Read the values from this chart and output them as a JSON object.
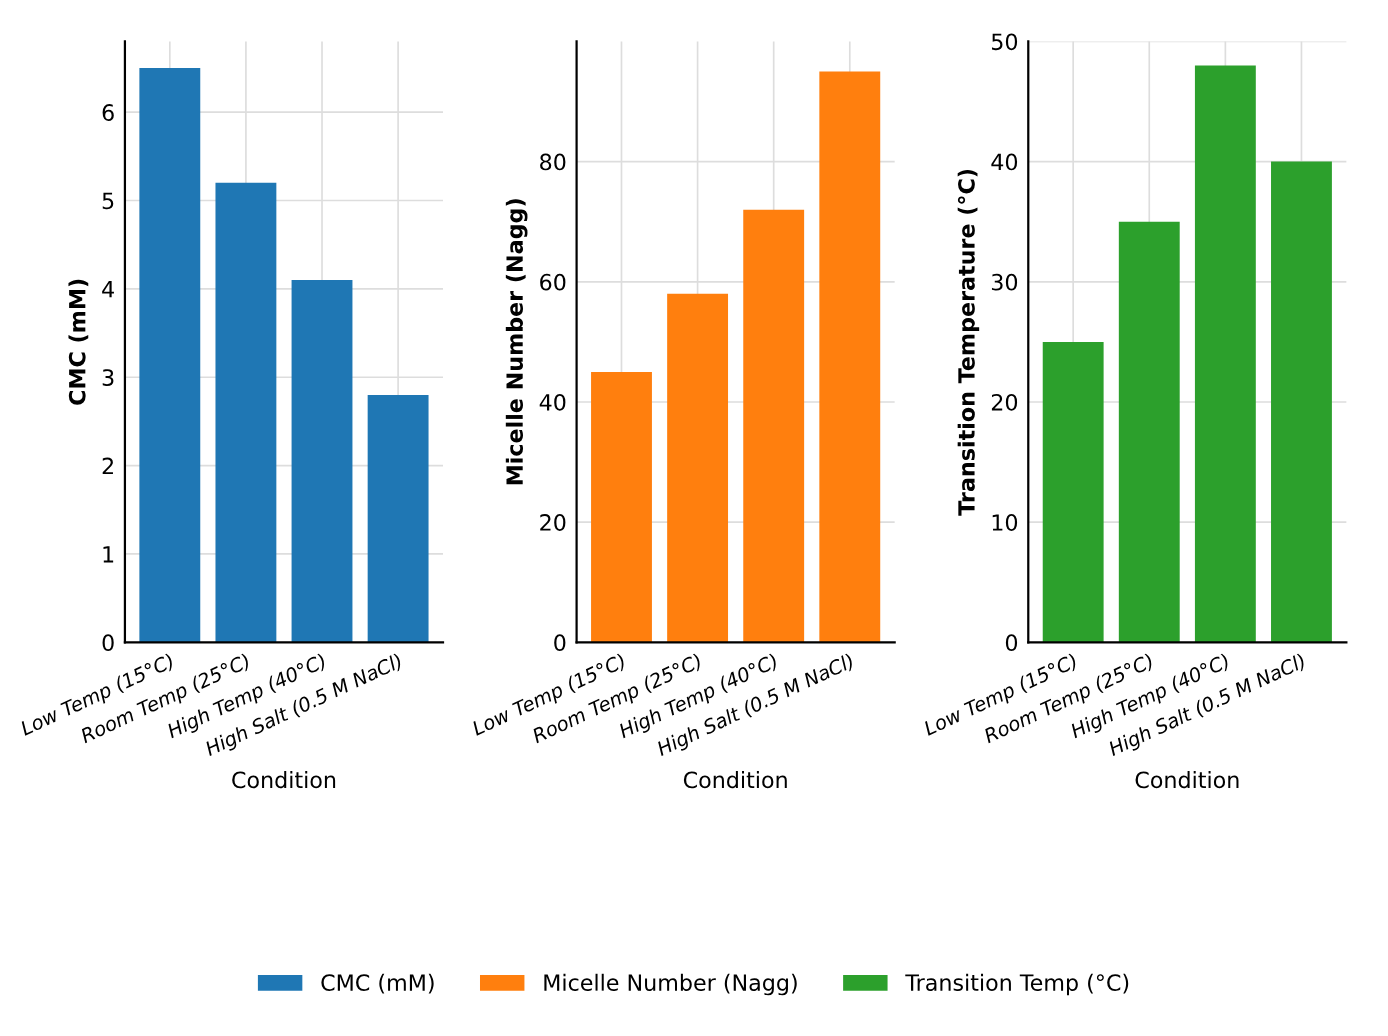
{
  "chart_data": [
    {
      "type": "bar",
      "categories": [
        "Low Temp (15°C)",
        "Room Temp (25°C)",
        "High Temp (40°C)",
        "High Salt (0.5 M NaCl)"
      ],
      "xlabel": "Condition",
      "ylabel": "CMC (mM)",
      "ylim": [
        0,
        6.8
      ],
      "yticks": [
        0,
        1,
        2,
        3,
        4,
        5,
        6
      ],
      "grid": true,
      "legend": "bottom",
      "series": [
        {
          "name": "CMC (mM)",
          "color": "#1f77b4",
          "values": [
            6.5,
            5.2,
            4.1,
            2.8
          ]
        }
      ]
    },
    {
      "type": "bar",
      "categories": [
        "Low Temp (15°C)",
        "Room Temp (25°C)",
        "High Temp (40°C)",
        "High Salt (0.5 M NaCl)"
      ],
      "xlabel": "Condition",
      "ylabel": "Micelle Number (Nagg)",
      "ylim": [
        0,
        100
      ],
      "yticks": [
        0,
        20,
        40,
        60,
        80
      ],
      "grid": true,
      "legend": "bottom",
      "series": [
        {
          "name": "Micelle Number (Nagg)",
          "color": "#ff7f0e",
          "values": [
            45,
            58,
            72,
            95
          ]
        }
      ]
    },
    {
      "type": "bar",
      "categories": [
        "Low Temp (15°C)",
        "Room Temp (25°C)",
        "High Temp (40°C)",
        "High Salt (0.5 M NaCl)"
      ],
      "xlabel": "Condition",
      "ylabel": "Transition Temperature (°C)",
      "ylim": [
        0,
        50
      ],
      "yticks": [
        0,
        10,
        20,
        30,
        40,
        50
      ],
      "grid": true,
      "legend": "bottom",
      "series": [
        {
          "name": "Transition Temp (°C)",
          "color": "#2ca02c",
          "values": [
            25,
            35,
            48,
            40
          ]
        }
      ]
    }
  ]
}
